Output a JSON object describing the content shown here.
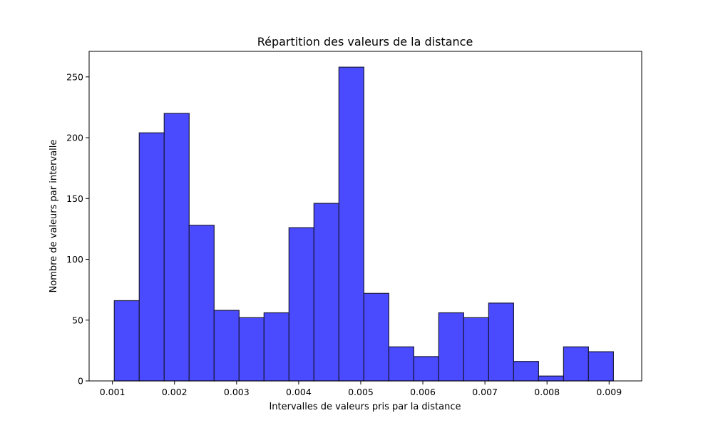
{
  "chart_data": {
    "type": "bar",
    "title": "Répartition des valeurs de la distance",
    "xlabel": "Intervalles de valeurs pris par la distance",
    "ylabel": "Nombre de valeurs par intervalle",
    "bar_color": "#4a4aff",
    "edge_color": "#1a1a3a",
    "xlim": [
      0.000625,
      0.009525
    ],
    "ylim": [
      0,
      271
    ],
    "bin_edges": [
      0.00103,
      0.001432,
      0.001834,
      0.002236,
      0.002638,
      0.00304,
      0.003442,
      0.003844,
      0.004246,
      0.004648,
      0.00505,
      0.005452,
      0.005854,
      0.006256,
      0.006658,
      0.00706,
      0.007462,
      0.007864,
      0.008266,
      0.008668,
      0.00907
    ],
    "values": [
      66,
      204,
      220,
      128,
      58,
      52,
      56,
      126,
      146,
      258,
      72,
      28,
      20,
      56,
      52,
      64,
      16,
      4,
      28,
      24
    ],
    "x_ticks": [
      {
        "value": 0.001,
        "label": "0.001"
      },
      {
        "value": 0.002,
        "label": "0.002"
      },
      {
        "value": 0.003,
        "label": "0.003"
      },
      {
        "value": 0.004,
        "label": "0.004"
      },
      {
        "value": 0.005,
        "label": "0.005"
      },
      {
        "value": 0.006,
        "label": "0.006"
      },
      {
        "value": 0.007,
        "label": "0.007"
      },
      {
        "value": 0.008,
        "label": "0.008"
      },
      {
        "value": 0.009,
        "label": "0.009"
      }
    ],
    "y_ticks": [
      {
        "value": 0,
        "label": "0"
      },
      {
        "value": 50,
        "label": "50"
      },
      {
        "value": 100,
        "label": "100"
      },
      {
        "value": 150,
        "label": "150"
      },
      {
        "value": 200,
        "label": "200"
      },
      {
        "value": 250,
        "label": "250"
      }
    ],
    "grid": false,
    "legend": "none"
  }
}
